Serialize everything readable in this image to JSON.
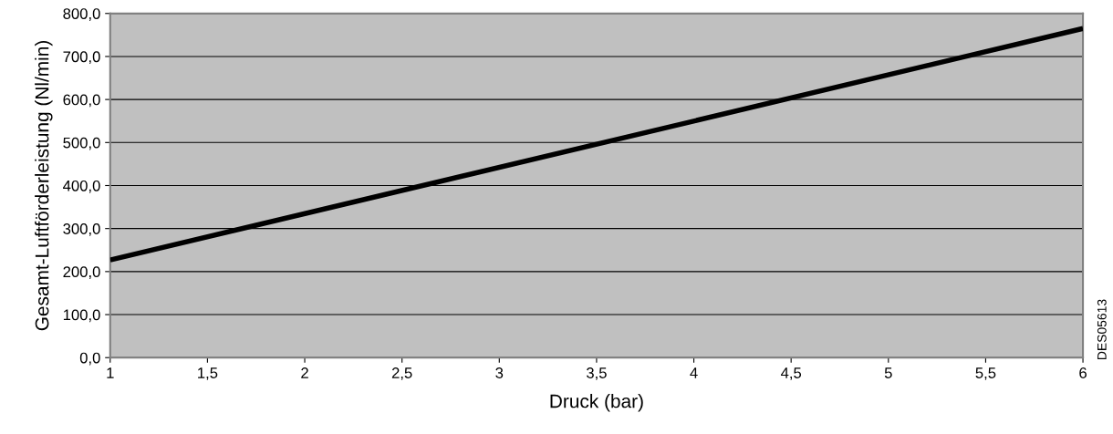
{
  "chart_data": {
    "type": "line",
    "xlabel": "Druck (bar)",
    "ylabel": "Gesamt-Luftförderleistung (Nl/min)",
    "x": [
      1,
      6
    ],
    "series": [
      {
        "color": "#000000",
        "values": [
          227,
          765
        ]
      }
    ],
    "xlim": [
      1,
      6
    ],
    "ylim": [
      0,
      800
    ],
    "xticks": [
      1,
      {
        "value": 1.5,
        "label": "1,5"
      },
      2,
      {
        "value": 2.5,
        "label": "2,5"
      },
      3,
      {
        "value": 3.5,
        "label": "3,5"
      },
      4,
      {
        "value": 4.5,
        "label": "4,5"
      },
      5,
      {
        "value": 5.5,
        "label": "5,5"
      },
      6
    ],
    "yticks": [
      {
        "value": 0,
        "label": "0,0"
      },
      {
        "value": 100,
        "label": "100,0"
      },
      {
        "value": 200,
        "label": "200,0"
      },
      {
        "value": 300,
        "label": "300,0"
      },
      {
        "value": 400,
        "label": "400,0"
      },
      {
        "value": 500,
        "label": "500,0"
      },
      {
        "value": 600,
        "label": "600,0"
      },
      {
        "value": 700,
        "label": "700,0"
      },
      {
        "value": 800,
        "label": "800,0"
      }
    ],
    "grid": "y",
    "marker": "none",
    "line_style": "solid",
    "annotations": [
      "DES05613"
    ]
  }
}
